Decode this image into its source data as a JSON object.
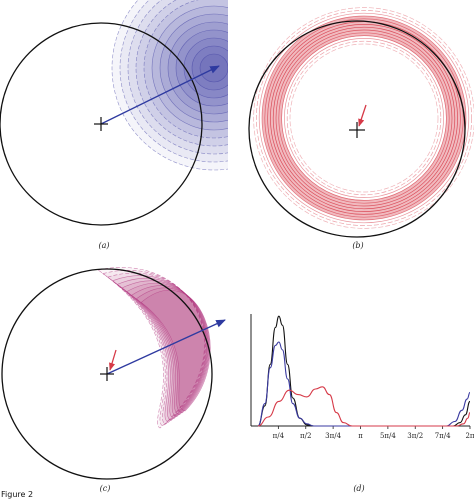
{
  "figure_label": "Figure 2",
  "panels": [
    {
      "id": "a",
      "caption": "(a)"
    },
    {
      "id": "b",
      "caption": "(b)"
    },
    {
      "id": "c",
      "caption": "(c)"
    },
    {
      "id": "d",
      "caption": "(d)"
    }
  ],
  "colors": {
    "blue": "#3a3aa0",
    "red": "#d63a48",
    "magenta": "#b0347e",
    "black": "#111111"
  },
  "chart_data": {
    "type": "line",
    "title": "",
    "xlabel": "",
    "ylabel": "",
    "x_ticks": [
      "π/4",
      "π/2",
      "3π/4",
      "π",
      "5π/4",
      "3π/2",
      "7π/4",
      "2π"
    ],
    "x_tick_values": [
      0.785,
      1.571,
      2.356,
      3.142,
      3.927,
      4.712,
      5.498,
      6.283
    ],
    "xlim": [
      0,
      6.283
    ],
    "ylim": [
      0,
      1
    ],
    "grid": false,
    "series": [
      {
        "color": "#111111",
        "x": [
          0.2,
          0.4,
          0.55,
          0.7,
          0.8,
          0.9,
          1.05,
          1.2,
          1.4,
          1.6,
          1.8,
          2.0,
          5.8,
          6.0,
          6.15,
          6.283
        ],
        "y": [
          0.0,
          0.18,
          0.55,
          0.88,
          0.98,
          0.9,
          0.55,
          0.25,
          0.07,
          0.01,
          0.0,
          0.0,
          0.0,
          0.03,
          0.1,
          0.22
        ]
      },
      {
        "color": "#3a3aa0",
        "x": [
          0.2,
          0.4,
          0.55,
          0.7,
          0.8,
          0.9,
          1.05,
          1.2,
          1.4,
          1.6,
          1.8,
          2.0,
          5.6,
          5.85,
          6.05,
          6.2,
          6.283
        ],
        "y": [
          0.0,
          0.2,
          0.52,
          0.72,
          0.75,
          0.68,
          0.42,
          0.2,
          0.07,
          0.02,
          0.0,
          0.0,
          0.0,
          0.04,
          0.14,
          0.24,
          0.3
        ]
      },
      {
        "color": "#d63a48",
        "x": [
          0.2,
          0.5,
          0.8,
          1.1,
          1.35,
          1.6,
          1.85,
          2.05,
          2.25,
          2.45,
          2.65,
          2.9,
          5.9,
          6.1,
          6.22,
          6.283
        ],
        "y": [
          0.0,
          0.08,
          0.22,
          0.32,
          0.28,
          0.26,
          0.33,
          0.35,
          0.28,
          0.12,
          0.03,
          0.0,
          0.0,
          0.02,
          0.07,
          0.12
        ]
      }
    ]
  }
}
